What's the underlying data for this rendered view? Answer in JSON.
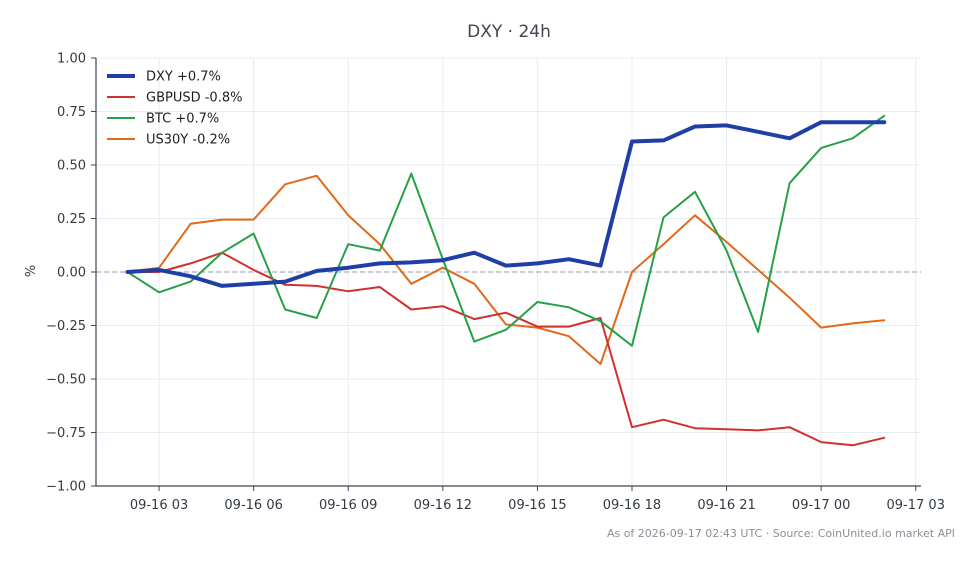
{
  "chart_data": {
    "type": "line",
    "title": "DXY · 24h",
    "ylabel": "%",
    "xlabel": "",
    "x": [
      "09-16 02:00",
      "09-16 03:00",
      "09-16 04:00",
      "09-16 05:00",
      "09-16 06:00",
      "09-16 07:00",
      "09-16 08:00",
      "09-16 09:00",
      "09-16 10:00",
      "09-16 11:00",
      "09-16 12:00",
      "09-16 13:00",
      "09-16 14:00",
      "09-16 15:00",
      "09-16 16:00",
      "09-16 17:00",
      "09-16 18:00",
      "09-16 19:00",
      "09-16 20:00",
      "09-16 21:00",
      "09-16 22:00",
      "09-16 23:00",
      "09-17 00:00",
      "09-17 01:00",
      "09-17 02:00"
    ],
    "xlim": [
      "09-16 01:00",
      "09-17 03:10"
    ],
    "xticks": [
      "09-16 03",
      "09-16 06",
      "09-16 09",
      "09-16 12",
      "09-16 15",
      "09-16 18",
      "09-16 21",
      "09-17 00",
      "09-17 03"
    ],
    "ylim": [
      -1.0,
      1.0
    ],
    "yticks": [
      "1.00",
      "0.75",
      "0.50",
      "0.25",
      "0.00",
      "−0.25",
      "−0.50",
      "−0.75",
      "−1.00"
    ],
    "ytick_values": [
      1.0,
      0.75,
      0.5,
      0.25,
      0.0,
      -0.25,
      -0.5,
      -0.75,
      -1.0
    ],
    "grid": true,
    "zero_line": true,
    "legend_position": "top-left",
    "series": [
      {
        "name": "DXY +0.7%",
        "color": "#1f3fa6",
        "width": 4,
        "values": [
          0.0,
          0.01,
          -0.02,
          -0.065,
          -0.055,
          -0.045,
          0.005,
          0.02,
          0.04,
          0.045,
          0.055,
          0.09,
          0.03,
          0.04,
          0.06,
          0.03,
          0.61,
          0.615,
          0.68,
          0.685,
          0.655,
          0.625,
          0.7,
          0.7,
          0.7
        ]
      },
      {
        "name": "GBPUSD -0.8%",
        "color": "#d03030",
        "width": 2,
        "values": [
          0.0,
          0.0,
          0.04,
          0.09,
          0.01,
          -0.06,
          -0.065,
          -0.09,
          -0.07,
          -0.175,
          -0.16,
          -0.22,
          -0.19,
          -0.255,
          -0.255,
          -0.215,
          -0.725,
          -0.69,
          -0.73,
          -0.735,
          -0.74,
          -0.725,
          -0.795,
          -0.81,
          -0.775
        ]
      },
      {
        "name": "BTC +0.7%",
        "color": "#27a048",
        "width": 2,
        "values": [
          0.0,
          -0.095,
          -0.045,
          0.09,
          0.18,
          -0.175,
          -0.215,
          0.13,
          0.1,
          0.46,
          0.06,
          -0.325,
          -0.27,
          -0.14,
          -0.165,
          -0.23,
          -0.345,
          0.255,
          0.375,
          0.1,
          -0.28,
          0.415,
          0.58,
          0.625,
          0.73
        ]
      },
      {
        "name": "US30Y -0.2%",
        "color": "#e06a1a",
        "width": 2,
        "values": [
          0.0,
          0.02,
          0.225,
          0.245,
          0.245,
          0.41,
          0.45,
          0.265,
          0.13,
          -0.055,
          0.02,
          -0.055,
          -0.245,
          -0.26,
          -0.3,
          -0.43,
          0.0,
          0.13,
          0.265,
          0.14,
          0.01,
          -0.12,
          -0.26,
          -0.24,
          -0.225
        ]
      }
    ]
  },
  "footer": "As of 2026-09-17 02:43 UTC · Source: CoinUnited.io market API"
}
